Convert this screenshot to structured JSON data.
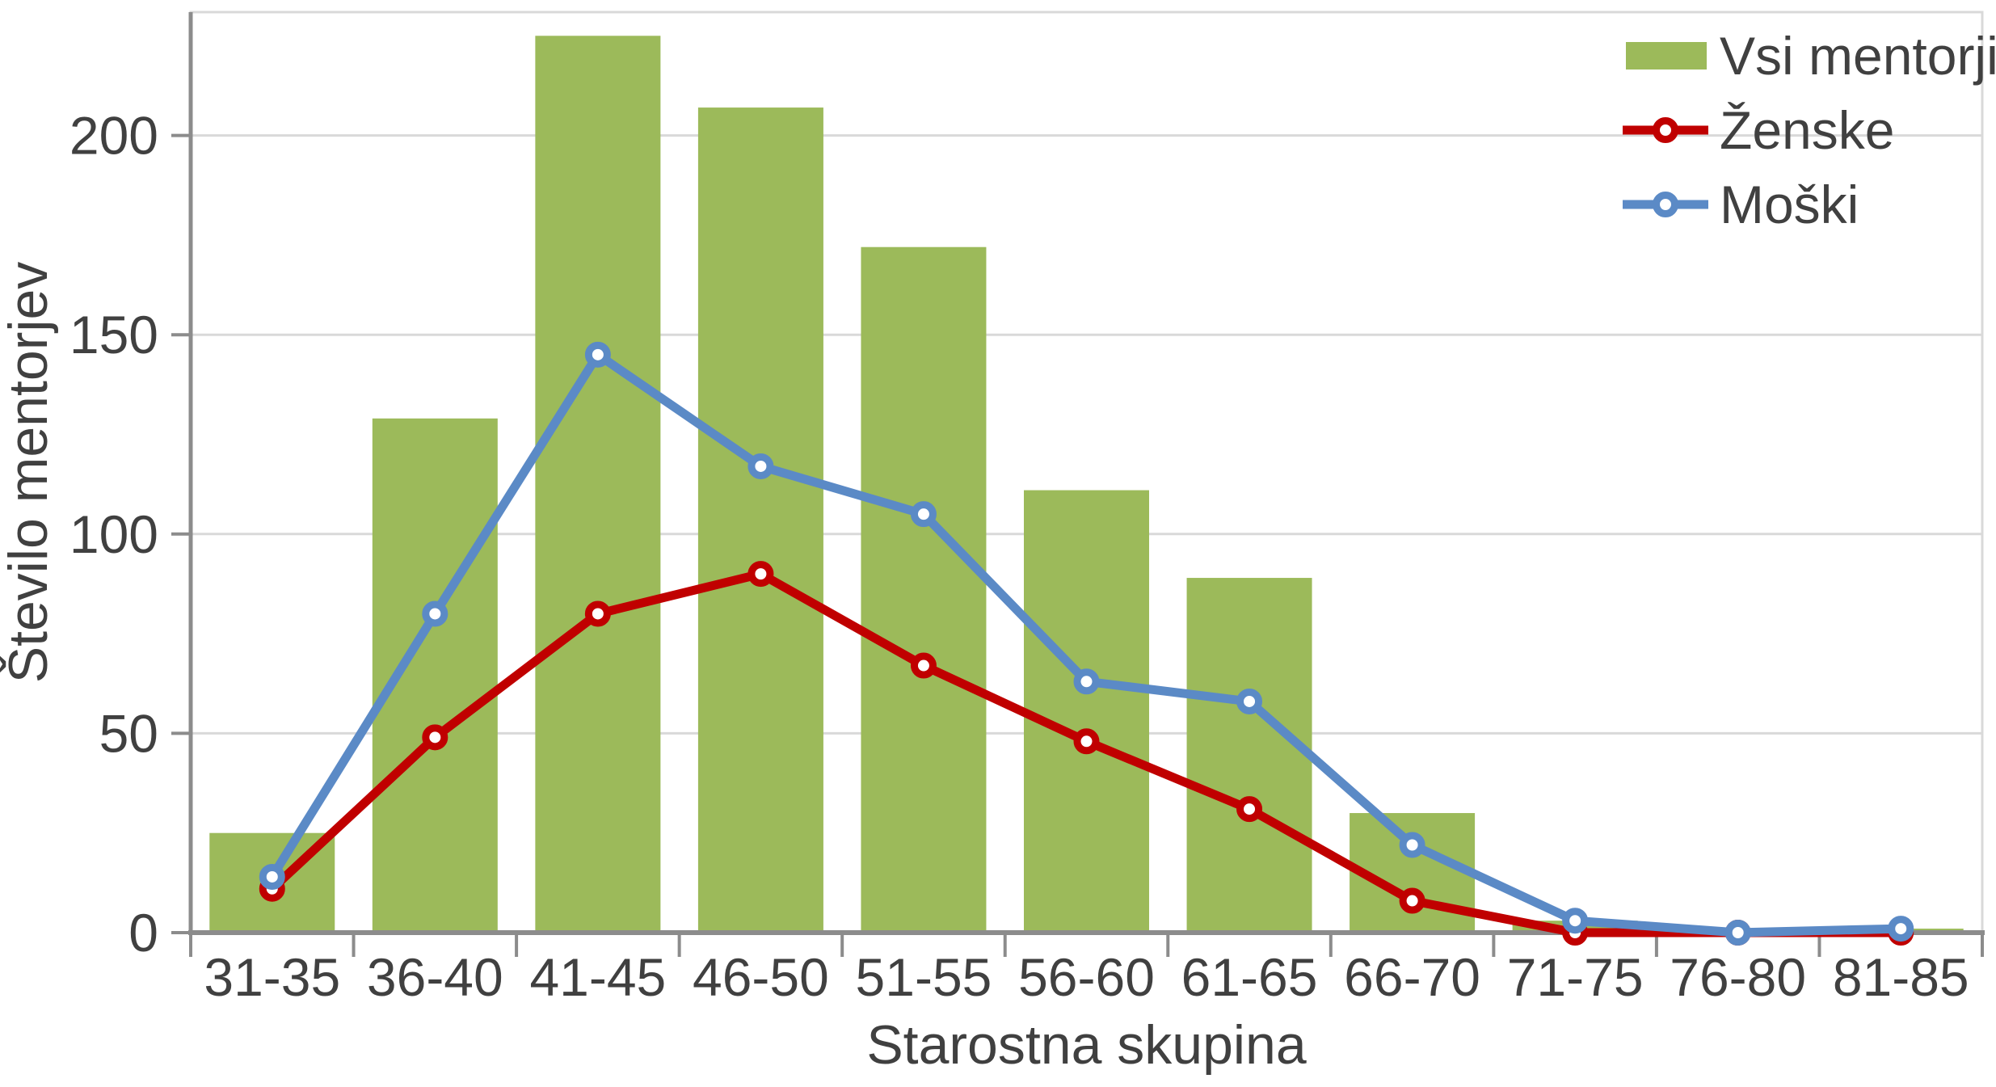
{
  "chart_data": {
    "type": "combo-bar-line",
    "title": "",
    "xlabel": "Starostna skupina",
    "ylabel": "Število mentorjev",
    "categories": [
      "31-35",
      "36-40",
      "41-45",
      "46-50",
      "51-55",
      "56-60",
      "61-65",
      "66-70",
      "71-75",
      "76-80",
      "81-85"
    ],
    "series": [
      {
        "name": "Vsi mentorji",
        "type": "bar",
        "color": "#9CBA5A",
        "values": [
          25,
          129,
          225,
          207,
          172,
          111,
          89,
          30,
          3,
          0,
          1
        ]
      },
      {
        "name": "Ženske",
        "type": "line",
        "color": "#C00000",
        "values": [
          11,
          49,
          80,
          90,
          67,
          48,
          31,
          8,
          0,
          0,
          0
        ]
      },
      {
        "name": "Moški",
        "type": "line",
        "color": "#5B8AC6",
        "values": [
          14,
          80,
          145,
          117,
          105,
          63,
          58,
          22,
          3,
          0,
          1
        ]
      }
    ],
    "ylim": [
      0,
      225
    ],
    "yticks": [
      0,
      50,
      100,
      150,
      200
    ],
    "grid": "horizontal",
    "legend_position": "top-right",
    "colors": {
      "axis": "#8C8C8C",
      "gridline": "#D9D9D9",
      "plot_border": "#D9D9D9",
      "text": "#404040",
      "background": "#FFFFFF"
    }
  }
}
